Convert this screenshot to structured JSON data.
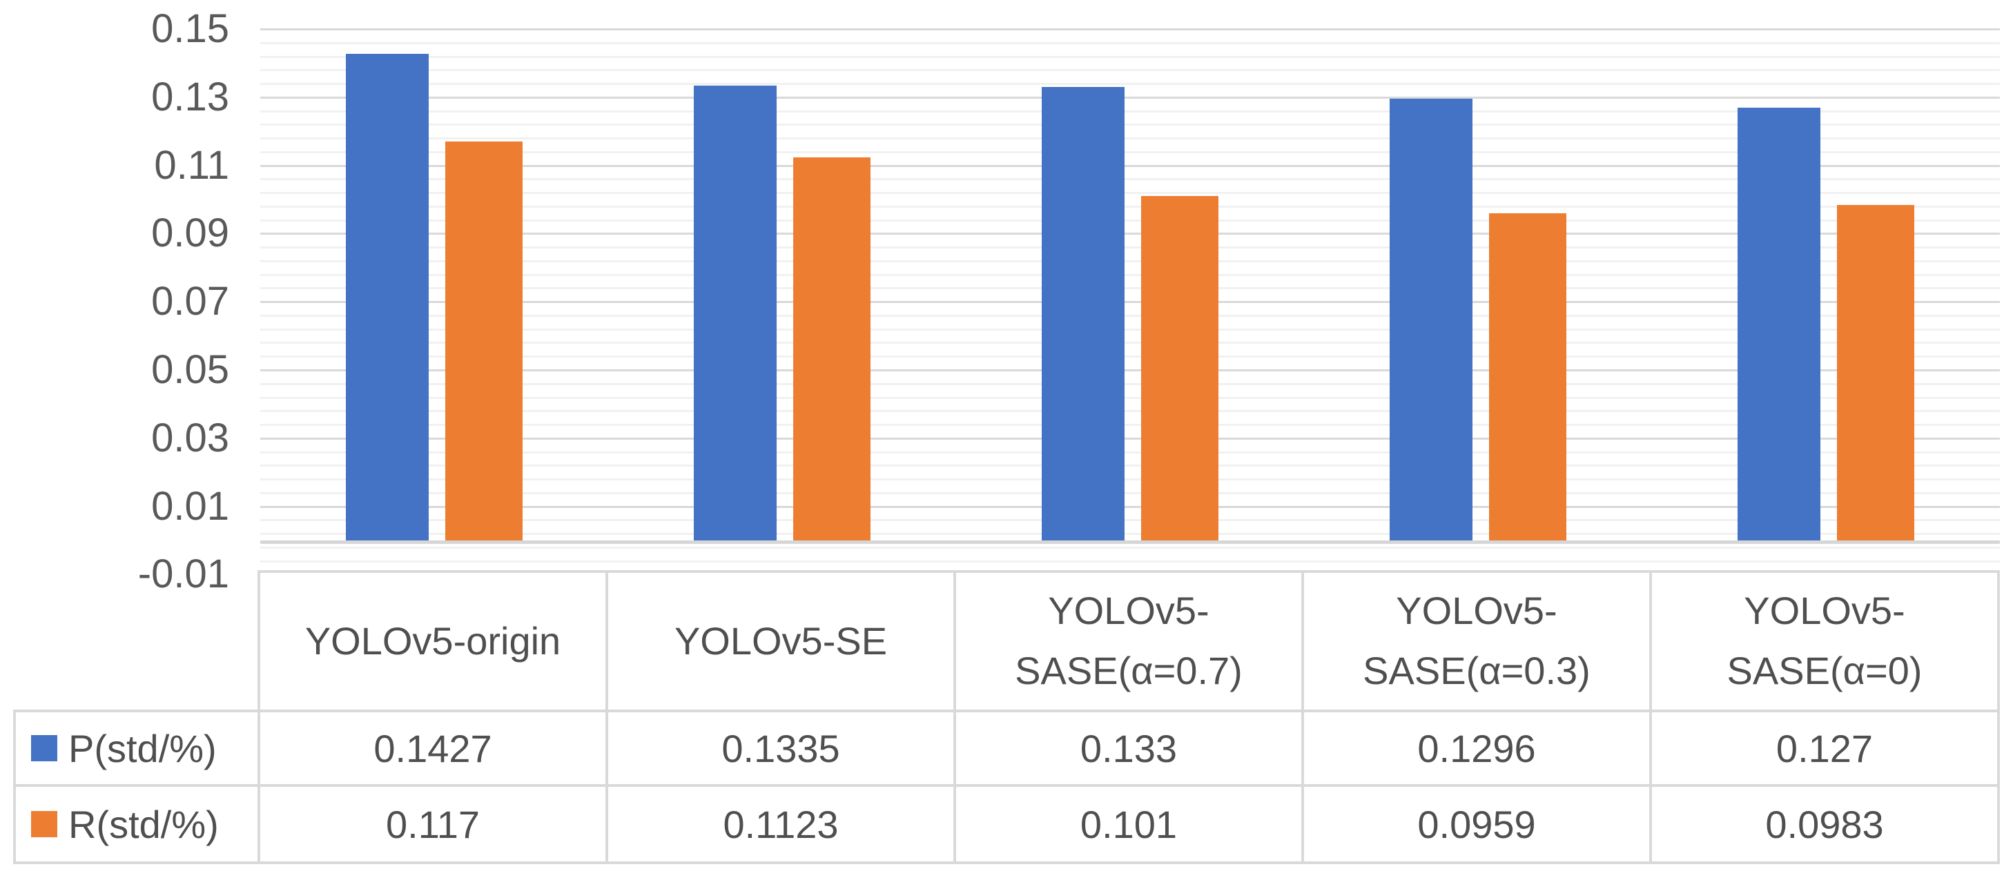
{
  "chart_data": {
    "type": "bar",
    "title": "",
    "xlabel": "",
    "ylabel": "",
    "categories": [
      "YOLOv5-origin",
      "YOLOv5-SE",
      "YOLOv5-SASE(α=0.7)",
      "YOLOv5-SASE(α=0.3)",
      "YOLOv5-SASE(α=0)"
    ],
    "series": [
      {
        "name": "P(std/%)",
        "color": "#4472C4",
        "values": [
          0.1427,
          0.1335,
          0.133,
          0.1296,
          0.127
        ],
        "value_labels": [
          "0.1427",
          "0.1335",
          "0.133",
          "0.1296",
          "0.127"
        ]
      },
      {
        "name": "R(std/%)",
        "color": "#ED7D31",
        "values": [
          0.117,
          0.1123,
          0.101,
          0.0959,
          0.0983
        ],
        "value_labels": [
          "0.117",
          "0.1123",
          "0.101",
          "0.0959",
          "0.0983"
        ]
      }
    ],
    "ylim": [
      -0.01,
      0.15
    ],
    "y_ticks": [
      0.15,
      0.13,
      0.11,
      0.09,
      0.07,
      0.05,
      0.03,
      0.01,
      -0.01
    ],
    "y_tick_labels": [
      "0.15",
      "0.13",
      "0.11",
      "0.09",
      "0.07",
      "0.05",
      "0.03",
      "0.01",
      "-0.01"
    ],
    "minor_unit": 0.004,
    "major_unit": 0.02,
    "grid": "on",
    "legend_position": "data-table-left",
    "data_table_shown": true
  },
  "colors": {
    "series_blue": "#4472C4",
    "series_orange": "#ED7D31",
    "major_gridline": "#d9d9d9",
    "minor_gridline": "#f1f1f1",
    "axis_line": "#d6d6d6",
    "table_border": "#d9d9d9",
    "text": "#4f4f4f",
    "tick_text": "#595959",
    "background": "#ffffff"
  }
}
